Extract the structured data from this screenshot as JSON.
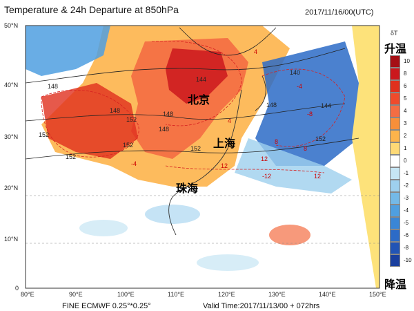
{
  "header": {
    "title": "Temperature & 24h Departure at 850hPa",
    "datetime": "2017/11/16/00(UTC)"
  },
  "footer": {
    "model": "FINE ECMWF 0.25°*0.25°",
    "valid_time": "Valid Time:2017/11/13/00 + 072hrs"
  },
  "map": {
    "lon_ticks": [
      "80°E",
      "90°E",
      "100°E",
      "110°E",
      "120°E",
      "130°E",
      "140°E",
      "150°E"
    ],
    "lat_ticks": [
      "0",
      "10°N",
      "20°N",
      "30°N",
      "40°N",
      "50°N"
    ],
    "cities": [
      {
        "id": "beijing",
        "name": "北京"
      },
      {
        "id": "shanghai",
        "name": "上海"
      },
      {
        "id": "zhuhai",
        "name": "珠海"
      }
    ],
    "contour_labels": [
      "148",
      "144",
      "140",
      "148",
      "152",
      "152",
      "148",
      "144",
      "148",
      "152",
      "148",
      "152",
      "152",
      "152"
    ],
    "departure_labels": [
      "4",
      "-4",
      "-8",
      "-4",
      "12",
      "8",
      "4",
      "8",
      "-12",
      "12",
      "12"
    ]
  },
  "legend": {
    "unit": "δT",
    "top_label": "升温",
    "bottom_label": "降温",
    "levels": [
      "10",
      "8",
      "6",
      "5",
      "4",
      "3",
      "2",
      "1",
      "0",
      "-1",
      "-2",
      "-3",
      "-4",
      "-5",
      "-6",
      "-8",
      "-10"
    ],
    "colors": [
      "#a50f15",
      "#cb181d",
      "#e0301e",
      "#ef4b2c",
      "#f46d43",
      "#f88f3a",
      "#fdb44b",
      "#fed976",
      "#ffffff",
      "#c6e6f4",
      "#9ed0ee",
      "#74b9e7",
      "#4f9fe0",
      "#3a86d6",
      "#2c6bc7",
      "#2254b5",
      "#1a3f9e"
    ]
  }
}
